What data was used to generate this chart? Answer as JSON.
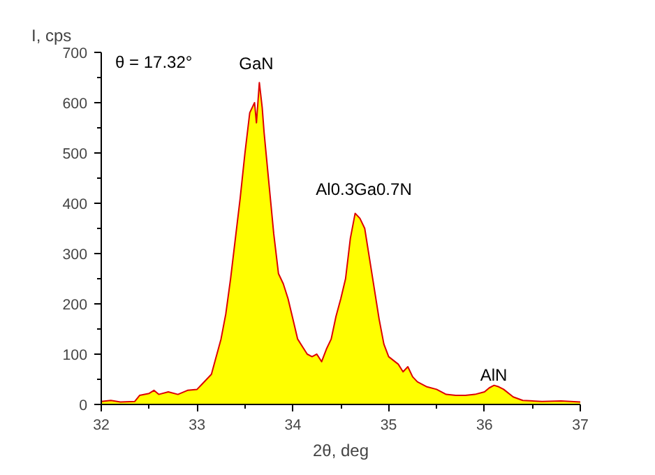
{
  "chart_data": {
    "type": "area",
    "xlabel": "2θ, deg",
    "ylabel": "I, cps",
    "xlim": [
      32,
      37
    ],
    "ylim": [
      0,
      700
    ],
    "xticks": [
      32,
      33,
      34,
      35,
      36,
      37
    ],
    "yticks": [
      0,
      100,
      200,
      300,
      400,
      500,
      600,
      700
    ],
    "grid": false,
    "annotations": [
      "θ = 17.32°",
      "GaN",
      "Al0.3Ga0.7N",
      "AlN"
    ],
    "series": [
      {
        "color": "#ffff00",
        "x": [
          32,
          32.1,
          32.2,
          32.35,
          32.4,
          32.5,
          32.55,
          32.6,
          32.7,
          32.8,
          32.9,
          33.0,
          33.05,
          33.1,
          33.15,
          33.2,
          33.25,
          33.3,
          33.35,
          33.4,
          33.45,
          33.5,
          33.55,
          33.6,
          33.62,
          33.65,
          33.68,
          33.7,
          33.75,
          33.8,
          33.85,
          33.9,
          33.95,
          34.0,
          34.05,
          34.1,
          34.15,
          34.2,
          34.25,
          34.3,
          34.35,
          34.4,
          34.45,
          34.5,
          34.55,
          34.6,
          34.65,
          34.7,
          34.75,
          34.8,
          34.85,
          34.9,
          34.95,
          35.0,
          35.1,
          35.15,
          35.2,
          35.25,
          35.3,
          35.4,
          35.5,
          35.6,
          35.7,
          35.8,
          35.9,
          36.0,
          36.05,
          36.1,
          36.15,
          36.2,
          36.3,
          36.4,
          36.6,
          36.8,
          37.0
        ],
        "values": [
          6,
          8,
          5,
          6,
          18,
          22,
          28,
          20,
          25,
          20,
          28,
          30,
          40,
          50,
          60,
          95,
          130,
          180,
          250,
          330,
          410,
          500,
          580,
          600,
          560,
          640,
          590,
          540,
          440,
          340,
          260,
          240,
          210,
          170,
          130,
          115,
          100,
          95,
          100,
          85,
          110,
          130,
          175,
          210,
          250,
          330,
          380,
          370,
          350,
          290,
          230,
          170,
          120,
          95,
          80,
          65,
          75,
          55,
          45,
          35,
          30,
          20,
          18,
          18,
          20,
          25,
          33,
          38,
          35,
          30,
          15,
          8,
          6,
          7,
          5
        ]
      }
    ]
  }
}
